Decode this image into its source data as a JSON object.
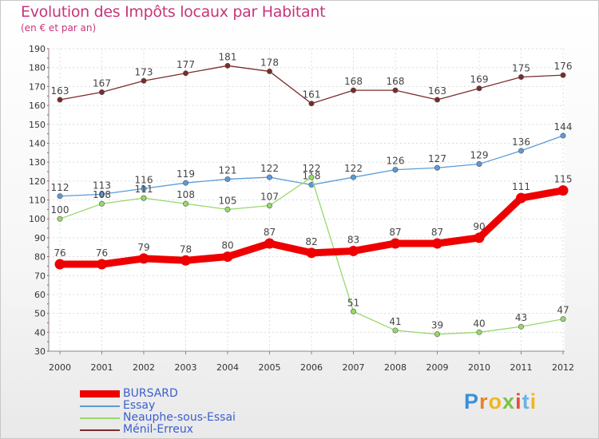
{
  "header": {
    "title": "Evolution des Impôts locaux par Habitant",
    "subtitle": "(en € et par an)"
  },
  "brand": {
    "letters": [
      "P",
      "r",
      "o",
      "x",
      "i",
      "t",
      "i"
    ],
    "colors": [
      "#3a8fd8",
      "#e8822a",
      "#f2b51e",
      "#7cc243",
      "#e84c3d",
      "#6cb2e4",
      "#f2b51e"
    ]
  },
  "chart_data": {
    "type": "line",
    "title": "Evolution des Impôts locaux par Habitant",
    "subtitle": "(en € et par an)",
    "xlabel": "",
    "ylabel": "",
    "x": [
      "2000",
      "2001",
      "2002",
      "2003",
      "2004",
      "2005",
      "2006",
      "2007",
      "2008",
      "2009",
      "2010",
      "2011",
      "2012"
    ],
    "ylim": [
      30,
      190
    ],
    "yticks": [
      30,
      40,
      50,
      60,
      70,
      80,
      90,
      100,
      110,
      120,
      130,
      140,
      150,
      160,
      170,
      180,
      190
    ],
    "grid": true,
    "legend_position": "bottom-left",
    "series": [
      {
        "name": "Ménil-Erreux",
        "color": "#7a2c2c",
        "emphasis": false,
        "values": [
          163,
          167,
          173,
          177,
          181,
          178,
          161,
          168,
          168,
          163,
          169,
          175,
          176
        ]
      },
      {
        "name": "Essay",
        "color": "#5b9bd5",
        "emphasis": false,
        "values": [
          112,
          113,
          116,
          119,
          121,
          122,
          118,
          122,
          126,
          127,
          129,
          136,
          144
        ]
      },
      {
        "name": "Neauphe-sous-Essai",
        "color": "#98d86c",
        "emphasis": false,
        "values": [
          100,
          108,
          111,
          108,
          105,
          107,
          122,
          51,
          41,
          39,
          40,
          43,
          47
        ]
      },
      {
        "name": "BURSARD",
        "color": "#ee0000",
        "emphasis": true,
        "values": [
          76,
          76,
          79,
          78,
          80,
          87,
          82,
          83,
          87,
          87,
          90,
          111,
          115
        ]
      }
    ],
    "legend": [
      "BURSARD",
      "Essay",
      "Neauphe-sous-Essai",
      "Ménil-Erreux"
    ]
  }
}
